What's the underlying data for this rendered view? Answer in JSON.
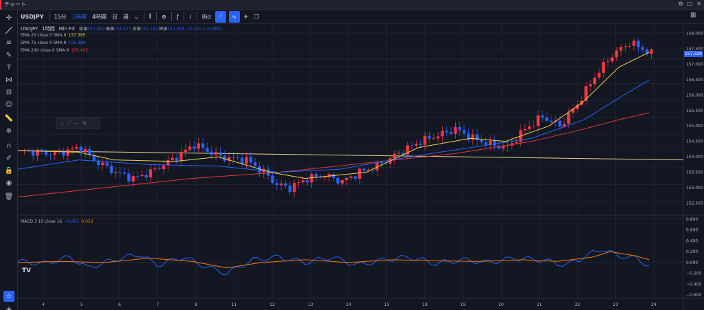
{
  "window": {
    "title": "チャート",
    "accent_color": "#f23645"
  },
  "toolbar": {
    "symbol": "USDJPY",
    "intervals": [
      "15分",
      "1時間",
      "4時間",
      "日",
      "週"
    ],
    "active_interval": "1時間",
    "bid_label": "Bid"
  },
  "legend": {
    "main": {
      "symbol": "USDJPY",
      "interval": "1時間",
      "source": "Min FX",
      "open_label": "始値",
      "open": "157.450",
      "high_label": "高値",
      "high": "157.477",
      "low_label": "安値",
      "low": "157.192",
      "close_label": "終値",
      "close": "157.329",
      "change": "−0.123 (−0.08%)"
    },
    "ema20": {
      "label": "EMA 20 close 0 SMA 9",
      "value": "157.385",
      "color": "#f0d348"
    },
    "ema75": {
      "label": "EMA 75 close 0 SMA 9",
      "value": "156.489",
      "color": "#2962ff"
    },
    "ema200": {
      "label": "EMA 200 close 0 SMA 9",
      "value": "155.425",
      "color": "#e03a3a"
    },
    "macd": {
      "label": "MACD 3 10 close 16",
      "macd_value": "−0.061",
      "signal_value": "0.053",
      "macd_color": "#2962ff",
      "signal_color": "#f57c00"
    }
  },
  "price_axis": {
    "labels": [
      "158.000",
      "157.500",
      "157.000",
      "156.500",
      "156.000",
      "155.500",
      "155.000",
      "154.500",
      "154.000",
      "153.500",
      "153.000",
      "152.500"
    ],
    "current_price": "157.329"
  },
  "macd_axis": {
    "labels": [
      "0.800",
      "0.600",
      "0.400",
      "0.200",
      "0.000",
      "−0.200",
      "−0.400",
      "−0.600"
    ]
  },
  "time_axis": {
    "labels": [
      "4",
      "5",
      "6",
      "7",
      "8",
      "11",
      "12",
      "13",
      "14",
      "15",
      "18",
      "19",
      "20",
      "21",
      "22",
      "23",
      "24"
    ]
  },
  "colors": {
    "up": "#f23645",
    "down": "#2962ff",
    "horizontal_line": "#e6d38a"
  },
  "chart_data": {
    "type": "candlestick",
    "symbol": "USDJPY",
    "ylim": [
      152.2,
      158.3
    ],
    "close_path": [
      [
        0,
        154.2
      ],
      [
        8,
        154.1
      ],
      [
        14,
        154.3
      ],
      [
        17,
        153.9
      ],
      [
        22,
        153.5
      ],
      [
        26,
        153.3
      ],
      [
        30,
        153.5
      ],
      [
        36,
        154.0
      ],
      [
        40,
        154.4
      ],
      [
        46,
        154.0
      ],
      [
        52,
        153.9
      ],
      [
        56,
        153.5
      ],
      [
        59,
        153.1
      ],
      [
        62,
        153.0
      ],
      [
        66,
        153.3
      ],
      [
        70,
        153.4
      ],
      [
        74,
        153.2
      ],
      [
        78,
        153.5
      ],
      [
        82,
        153.7
      ],
      [
        88,
        154.2
      ],
      [
        92,
        154.5
      ],
      [
        96,
        154.7
      ],
      [
        100,
        154.9
      ],
      [
        104,
        154.6
      ],
      [
        108,
        154.4
      ],
      [
        112,
        154.3
      ],
      [
        116,
        154.9
      ],
      [
        120,
        155.3
      ],
      [
        124,
        155.0
      ],
      [
        128,
        155.7
      ],
      [
        132,
        156.6
      ],
      [
        136,
        157.3
      ],
      [
        140,
        157.7
      ],
      [
        143,
        157.5
      ],
      [
        145,
        157.33
      ]
    ],
    "ema20": [
      [
        0,
        154.2
      ],
      [
        14,
        154.15
      ],
      [
        22,
        153.9
      ],
      [
        36,
        153.85
      ],
      [
        46,
        154.0
      ],
      [
        58,
        153.5
      ],
      [
        66,
        153.3
      ],
      [
        80,
        153.5
      ],
      [
        92,
        154.3
      ],
      [
        104,
        154.6
      ],
      [
        112,
        154.5
      ],
      [
        122,
        155.0
      ],
      [
        130,
        155.8
      ],
      [
        138,
        156.9
      ],
      [
        145,
        157.39
      ]
    ],
    "ema75": [
      [
        0,
        153.6
      ],
      [
        14,
        153.9
      ],
      [
        30,
        153.75
      ],
      [
        46,
        153.7
      ],
      [
        60,
        153.5
      ],
      [
        74,
        153.6
      ],
      [
        90,
        154.0
      ],
      [
        104,
        154.3
      ],
      [
        118,
        154.6
      ],
      [
        130,
        155.2
      ],
      [
        138,
        155.9
      ],
      [
        145,
        156.49
      ]
    ],
    "ema200": [
      [
        0,
        152.7
      ],
      [
        20,
        153.0
      ],
      [
        40,
        153.3
      ],
      [
        60,
        153.5
      ],
      [
        80,
        153.8
      ],
      [
        100,
        154.1
      ],
      [
        118,
        154.5
      ],
      [
        130,
        154.9
      ],
      [
        138,
        155.2
      ],
      [
        145,
        155.43
      ]
    ],
    "horizontal_line": {
      "from": [
        0,
        154.2
      ],
      "to": [
        150,
        153.9
      ]
    },
    "macd_ylim": [
      -0.65,
      0.85
    ],
    "macd": [
      [
        0,
        0.02
      ],
      [
        6,
        -0.02
      ],
      [
        12,
        0.1
      ],
      [
        16,
        -0.1
      ],
      [
        22,
        0.05
      ],
      [
        28,
        0.15
      ],
      [
        32,
        -0.05
      ],
      [
        38,
        0.1
      ],
      [
        44,
        -0.1
      ],
      [
        48,
        -0.2
      ],
      [
        54,
        0.05
      ],
      [
        60,
        0.1
      ],
      [
        66,
        0.0
      ],
      [
        72,
        0.1
      ],
      [
        78,
        -0.05
      ],
      [
        84,
        0.05
      ],
      [
        90,
        0.1
      ],
      [
        96,
        -0.02
      ],
      [
        102,
        0.05
      ],
      [
        108,
        0.0
      ],
      [
        114,
        0.08
      ],
      [
        120,
        0.05
      ],
      [
        126,
        -0.05
      ],
      [
        130,
        0.1
      ],
      [
        134,
        0.25
      ],
      [
        138,
        0.12
      ],
      [
        142,
        0.08
      ],
      [
        145,
        -0.06
      ]
    ],
    "macd_signal": [
      [
        0,
        0.0
      ],
      [
        10,
        0.02
      ],
      [
        20,
        0.0
      ],
      [
        30,
        0.08
      ],
      [
        40,
        0.02
      ],
      [
        48,
        -0.1
      ],
      [
        56,
        0.0
      ],
      [
        66,
        0.05
      ],
      [
        76,
        0.0
      ],
      [
        86,
        0.05
      ],
      [
        96,
        0.03
      ],
      [
        106,
        0.02
      ],
      [
        116,
        0.05
      ],
      [
        124,
        0.02
      ],
      [
        132,
        0.1
      ],
      [
        136,
        0.2
      ],
      [
        142,
        0.12
      ],
      [
        145,
        0.05
      ]
    ]
  }
}
